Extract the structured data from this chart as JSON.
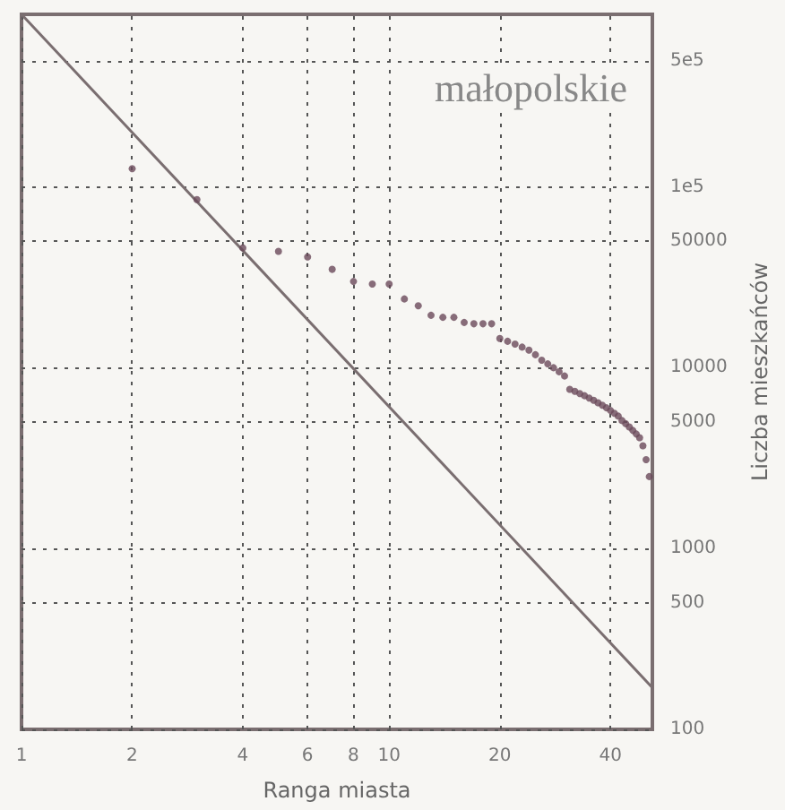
{
  "chart_data": {
    "type": "scatter",
    "xlabel": "Ranga miasta",
    "ylabel": "Liczba mieszkańców",
    "annotations": [
      "małopolskie"
    ],
    "log": "xy",
    "grid": true,
    "marker": "circle",
    "xlim": [
      1,
      52
    ],
    "ylim": [
      100,
      900000
    ],
    "xticks": [
      1,
      2,
      4,
      6,
      8,
      10,
      20,
      40
    ],
    "yticks": [
      100,
      500,
      1000,
      5000,
      10000,
      50000,
      {
        "value": 100000,
        "label": "1e5"
      },
      {
        "value": 500000,
        "label": "5e5"
      }
    ],
    "series": [
      {
        "color": "#6a4a5a",
        "x": [
          2,
          3,
          4,
          5,
          6,
          7,
          8,
          9,
          10,
          11,
          12,
          13,
          14,
          15,
          16,
          17,
          18,
          19,
          20,
          21,
          22,
          23,
          24,
          25,
          26,
          27,
          28,
          29,
          30,
          31,
          32,
          33,
          34,
          35,
          36,
          37,
          38,
          39,
          40,
          41,
          42,
          43,
          44,
          45,
          46,
          47,
          48,
          49,
          50,
          51
        ],
        "values": [
          126000,
          85000,
          46000,
          44000,
          41000,
          35000,
          30000,
          29000,
          29000,
          24000,
          22000,
          19500,
          19000,
          19000,
          17800,
          17500,
          17500,
          17500,
          14500,
          14000,
          13500,
          13000,
          12500,
          11800,
          11000,
          10500,
          10000,
          9500,
          9000,
          7600,
          7400,
          7200,
          7000,
          6800,
          6600,
          6400,
          6200,
          6000,
          5800,
          5600,
          5400,
          5100,
          4900,
          4700,
          4500,
          4300,
          4100,
          3700,
          3100,
          2500
        ]
      },
      {
        "type": "line",
        "color": "#7a6e70",
        "marker": "none",
        "line_style": "solid",
        "x": [
          1,
          52
        ],
        "values": [
          900000,
          170
        ]
      }
    ]
  }
}
